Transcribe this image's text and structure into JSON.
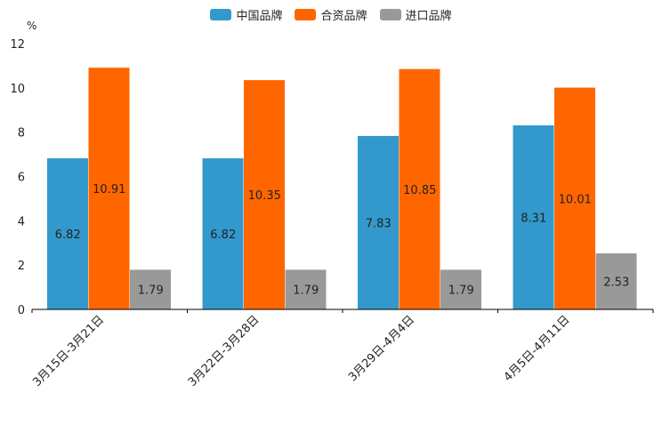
{
  "chart_data": {
    "type": "bar",
    "ylabel": "%",
    "ylim": [
      0,
      12
    ],
    "yticks": [
      0,
      2,
      4,
      6,
      8,
      10,
      12
    ],
    "categories": [
      "3月15日-3月21日",
      "3月22日-3月28日",
      "3月29日-4月4日",
      "4月5日-4月11日"
    ],
    "series": [
      {
        "name": "中国品牌",
        "color": "#3399cc",
        "values": [
          6.82,
          6.82,
          7.83,
          8.31
        ],
        "labels": [
          "6.82",
          "6.82",
          "7.83",
          "8.31"
        ]
      },
      {
        "name": "合资品牌",
        "color": "#ff6600",
        "values": [
          10.91,
          10.35,
          10.85,
          10.01
        ],
        "labels": [
          "10.91",
          "10.35",
          "10.85",
          "10.01"
        ]
      },
      {
        "name": "进口品牌",
        "color": "#999999",
        "values": [
          1.79,
          1.79,
          1.79,
          2.53
        ],
        "labels": [
          "1.79",
          "1.79",
          "1.79",
          "2.53"
        ]
      }
    ],
    "legend_position": "top-center"
  }
}
